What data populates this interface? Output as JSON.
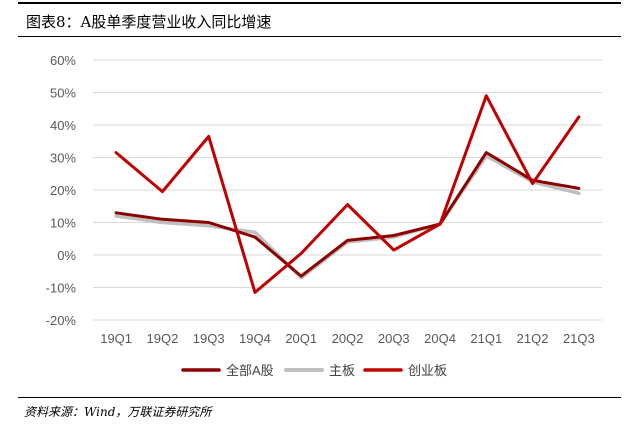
{
  "header": {
    "title": "图表8：A股单季度营业收入同比增速"
  },
  "footer": {
    "source": "资料来源：Wind，万联证券研究所"
  },
  "chart_data": {
    "type": "line",
    "categories": [
      "19Q1",
      "19Q2",
      "19Q3",
      "19Q4",
      "20Q1",
      "20Q2",
      "20Q3",
      "20Q4",
      "21Q1",
      "21Q2",
      "21Q3"
    ],
    "ylim": [
      -20,
      60
    ],
    "yticks": [
      -20,
      -10,
      0,
      10,
      20,
      30,
      40,
      50,
      60
    ],
    "ytick_labels": [
      "-20%",
      "-10%",
      "0%",
      "10%",
      "20%",
      "30%",
      "40%",
      "50%",
      "60%"
    ],
    "grid": true,
    "legend_position": "bottom",
    "series": [
      {
        "name": "全部A股",
        "color": "#8B0000",
        "width": 3,
        "values": [
          13.0,
          11.0,
          10.0,
          5.5,
          -6.5,
          4.5,
          6.0,
          9.5,
          31.5,
          23.0,
          20.5
        ]
      },
      {
        "name": "主板",
        "color": "#BFBFBF",
        "width": 3.5,
        "values": [
          12.0,
          10.0,
          9.0,
          7.0,
          -7.0,
          4.0,
          5.5,
          9.5,
          30.5,
          22.5,
          19.0
        ]
      },
      {
        "name": "创业板",
        "color": "#C00000",
        "width": 3,
        "values": [
          31.5,
          19.5,
          36.5,
          -11.5,
          0.5,
          15.5,
          1.5,
          9.5,
          49.0,
          22.0,
          42.5
        ]
      }
    ]
  }
}
